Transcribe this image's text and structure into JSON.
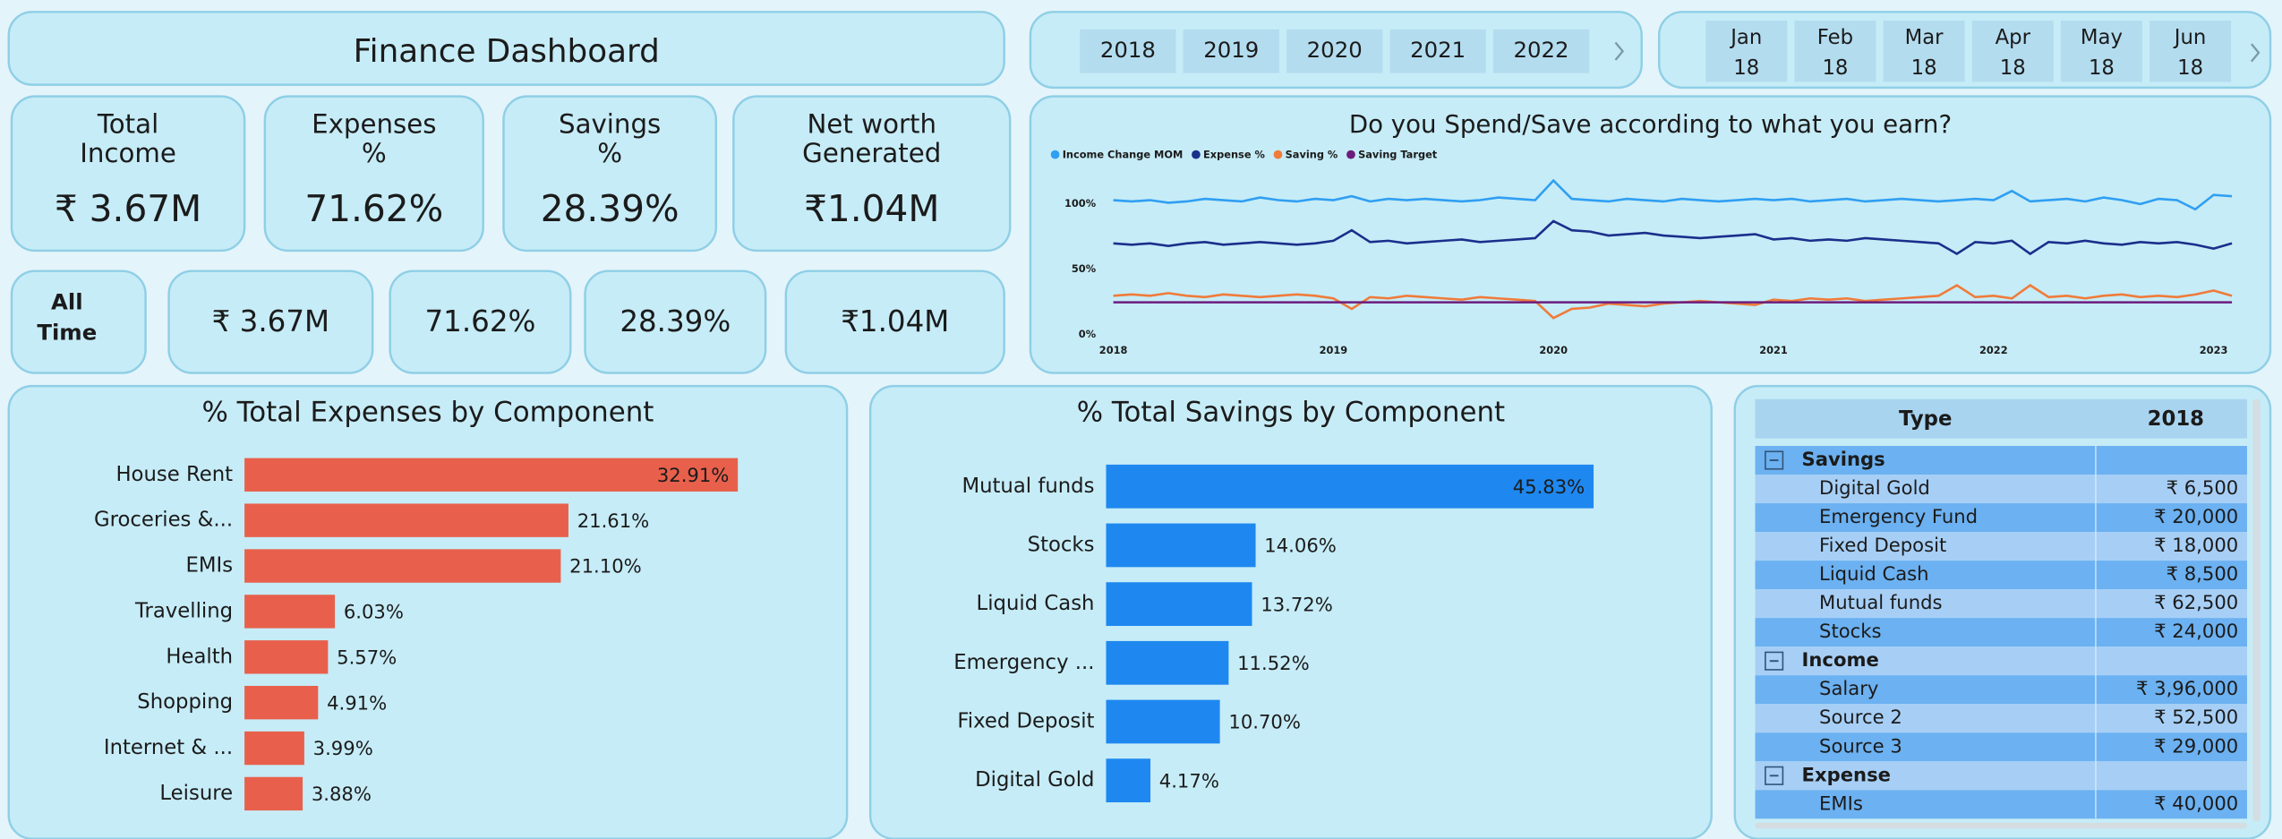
{
  "header": {
    "title": "Finance Dashboard"
  },
  "year_slicer": {
    "options": [
      "2018",
      "2019",
      "2020",
      "2021",
      "2022"
    ]
  },
  "month_slicer": {
    "options": [
      [
        "Jan",
        "18"
      ],
      [
        "Feb",
        "18"
      ],
      [
        "Mar",
        "18"
      ],
      [
        "Apr",
        "18"
      ],
      [
        "May",
        "18"
      ],
      [
        "Jun",
        "18"
      ]
    ]
  },
  "kpis": [
    {
      "label": [
        "Total",
        "Income"
      ],
      "value": "₹ 3.67M"
    },
    {
      "label": [
        "Expenses",
        "%"
      ],
      "value": "71.62%"
    },
    {
      "label": [
        "Savings",
        "%"
      ],
      "value": "28.39%"
    },
    {
      "label": [
        "Net worth",
        "Generated"
      ],
      "value": "₹1.04M"
    }
  ],
  "all_time": {
    "label": [
      "All",
      "Time"
    ],
    "values": [
      "₹ 3.67M",
      "71.62%",
      "28.39%",
      "₹1.04M"
    ]
  },
  "chart_data": [
    {
      "type": "line",
      "title": "Do you Spend/Save according to what you earn?",
      "legend": "top-left",
      "grid": false,
      "categories": [
        "2018",
        null,
        null,
        null,
        null,
        null,
        null,
        null,
        null,
        null,
        null,
        null,
        "2019",
        null,
        null,
        null,
        null,
        null,
        null,
        null,
        null,
        null,
        null,
        null,
        "2020",
        null,
        null,
        null,
        null,
        null,
        null,
        null,
        null,
        null,
        null,
        null,
        "2021",
        null,
        null,
        null,
        null,
        null,
        null,
        null,
        null,
        null,
        null,
        null,
        "2022",
        null,
        null,
        null,
        null,
        null,
        null,
        null,
        null,
        null,
        null,
        null,
        "2023",
        null
      ],
      "ylim": [
        0,
        140
      ],
      "yticks": [
        {
          "value": 0,
          "label": "0%"
        },
        {
          "value": 50,
          "label": "50%"
        },
        {
          "value": 100,
          "label": "100%"
        }
      ],
      "series": [
        {
          "name": "Income Change MOM",
          "color": "#2f9ff2",
          "values": [
            103,
            102,
            103,
            101,
            102,
            104,
            103,
            102,
            105,
            103,
            102,
            104,
            103,
            106,
            102,
            104,
            103,
            104,
            103,
            102,
            103,
            105,
            104,
            103,
            118,
            104,
            103,
            102,
            104,
            103,
            102,
            104,
            103,
            102,
            103,
            104,
            103,
            104,
            102,
            103,
            104,
            102,
            103,
            104,
            103,
            102,
            103,
            104,
            103,
            110,
            102,
            103,
            104,
            102,
            105,
            103,
            100,
            104,
            103,
            96,
            107,
            106
          ]
        },
        {
          "name": "Expense %",
          "color": "#1b2f8c",
          "values": [
            70,
            69,
            70,
            68,
            70,
            71,
            69,
            70,
            71,
            70,
            69,
            70,
            72,
            80,
            71,
            72,
            70,
            71,
            72,
            73,
            71,
            72,
            73,
            74,
            87,
            80,
            79,
            76,
            77,
            78,
            76,
            75,
            74,
            75,
            76,
            77,
            73,
            74,
            72,
            73,
            72,
            74,
            73,
            72,
            71,
            70,
            62,
            71,
            70,
            72,
            62,
            71,
            70,
            72,
            70,
            69,
            71,
            70,
            71,
            69,
            66,
            70
          ]
        },
        {
          "name": "Saving %",
          "color": "#f07b3a",
          "values": [
            30,
            31,
            30,
            32,
            30,
            29,
            31,
            30,
            29,
            30,
            31,
            30,
            28,
            20,
            29,
            28,
            30,
            29,
            28,
            27,
            29,
            28,
            27,
            26,
            13,
            20,
            21,
            24,
            23,
            22,
            24,
            25,
            26,
            25,
            24,
            23,
            27,
            26,
            28,
            27,
            28,
            26,
            27,
            28,
            29,
            30,
            38,
            29,
            30,
            28,
            38,
            29,
            30,
            28,
            30,
            31,
            29,
            30,
            29,
            31,
            34,
            30
          ]
        },
        {
          "name": "Saving Target",
          "color": "#6b1c7c",
          "values": [
            25,
            25,
            25,
            25,
            25,
            25,
            25,
            25,
            25,
            25,
            25,
            25,
            25,
            25,
            25,
            25,
            25,
            25,
            25,
            25,
            25,
            25,
            25,
            25,
            25,
            25,
            25,
            25,
            25,
            25,
            25,
            25,
            25,
            25,
            25,
            25,
            25,
            25,
            25,
            25,
            25,
            25,
            25,
            25,
            25,
            25,
            25,
            25,
            25,
            25,
            25,
            25,
            25,
            25,
            25,
            25,
            25,
            25,
            25,
            25,
            25,
            25
          ]
        }
      ]
    },
    {
      "type": "bar",
      "orientation": "horizontal",
      "title": "% Total Expenses by Component",
      "color": "#e8604c",
      "categories": [
        "House Rent",
        "Groceries &...",
        "EMIs",
        "Travelling",
        "Health",
        "Shopping",
        "Internet & ...",
        "Leisure"
      ],
      "values": [
        32.91,
        21.61,
        21.1,
        6.03,
        5.57,
        4.91,
        3.99,
        3.88
      ],
      "value_labels": [
        "32.91%",
        "21.61%",
        "21.10%",
        "6.03%",
        "5.57%",
        "4.91%",
        "3.99%",
        "3.88%"
      ],
      "xlim": [
        0,
        40
      ]
    },
    {
      "type": "bar",
      "orientation": "horizontal",
      "title": "% Total Savings by Component",
      "color": "#1e88f0",
      "categories": [
        "Mutual funds",
        "Stocks",
        "Liquid Cash",
        "Emergency ...",
        "Fixed Deposit",
        "Digital Gold"
      ],
      "values": [
        45.83,
        14.06,
        13.72,
        11.52,
        10.7,
        4.17
      ],
      "value_labels": [
        "45.83%",
        "14.06%",
        "13.72%",
        "11.52%",
        "10.70%",
        "4.17%"
      ],
      "xlim": [
        0,
        55
      ]
    }
  ],
  "table": {
    "columns": [
      "Type",
      "2018"
    ],
    "groups": [
      {
        "name": "Savings",
        "rows": [
          [
            "Digital Gold",
            "₹ 6,500"
          ],
          [
            "Emergency Fund",
            "₹ 20,000"
          ],
          [
            "Fixed Deposit",
            "₹ 18,000"
          ],
          [
            "Liquid Cash",
            "₹ 8,500"
          ],
          [
            "Mutual funds",
            "₹ 62,500"
          ],
          [
            "Stocks",
            "₹ 24,000"
          ]
        ]
      },
      {
        "name": "Income",
        "rows": [
          [
            "Salary",
            "₹ 3,96,000"
          ],
          [
            "Source 2",
            "₹ 52,500"
          ],
          [
            "Source 3",
            "₹ 29,000"
          ]
        ]
      },
      {
        "name": "Expense",
        "rows": [
          [
            "EMIs",
            "₹ 40,000"
          ]
        ]
      }
    ]
  }
}
